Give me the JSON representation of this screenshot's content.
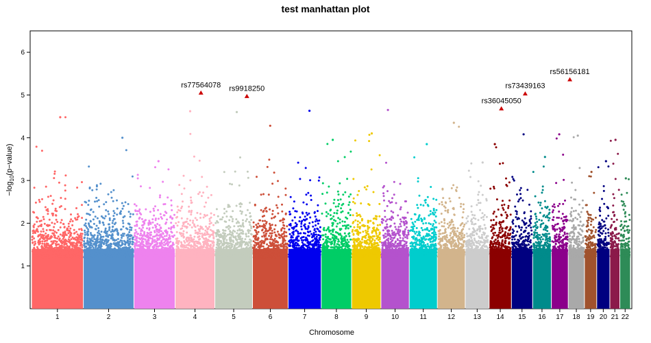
{
  "chart_data": {
    "type": "scatter",
    "title": "test manhattan plot",
    "xlabel": "Chromosome",
    "ylabel": "−log10(p−value)",
    "ylim": [
      0,
      6.5
    ],
    "yticks": [
      1,
      2,
      3,
      4,
      5,
      6
    ],
    "grid": false,
    "legend": "none",
    "chromosomes": [
      {
        "name": "1",
        "rel_len": 249,
        "color": "#FF6666",
        "peak": 4.48
      },
      {
        "name": "2",
        "rel_len": 243,
        "color": "#5490CC",
        "peak": 4.0
      },
      {
        "name": "3",
        "rel_len": 198,
        "color": "#EE82EE",
        "peak": 3.45
      },
      {
        "name": "4",
        "rel_len": 191,
        "color": "#FFB3C0",
        "peak": 4.62
      },
      {
        "name": "5",
        "rel_len": 181,
        "color": "#C3CCBD",
        "peak": 4.6
      },
      {
        "name": "6",
        "rel_len": 171,
        "color": "#CD4F39",
        "peak": 4.28
      },
      {
        "name": "7",
        "rel_len": 159,
        "color": "#0000EE",
        "peak": 4.63
      },
      {
        "name": "8",
        "rel_len": 146,
        "color": "#00CD66",
        "peak": 3.95
      },
      {
        "name": "9",
        "rel_len": 141,
        "color": "#EEC900",
        "peak": 4.1
      },
      {
        "name": "10",
        "rel_len": 136,
        "color": "#B452CD",
        "peak": 4.65
      },
      {
        "name": "11",
        "rel_len": 135,
        "color": "#00CDCD",
        "peak": 3.85
      },
      {
        "name": "12",
        "rel_len": 134,
        "color": "#D2B48C",
        "peak": 4.35
      },
      {
        "name": "13",
        "rel_len": 115,
        "color": "#CCCCCC",
        "peak": 3.42
      },
      {
        "name": "14",
        "rel_len": 107,
        "color": "#8B0000",
        "peak": 3.85
      },
      {
        "name": "15",
        "rel_len": 102,
        "color": "#000080",
        "peak": 4.08
      },
      {
        "name": "16",
        "rel_len": 90,
        "color": "#008B8B",
        "peak": 3.55
      },
      {
        "name": "17",
        "rel_len": 81,
        "color": "#8B008B",
        "peak": 4.08
      },
      {
        "name": "18",
        "rel_len": 78,
        "color": "#A9A9A9",
        "peak": 4.05
      },
      {
        "name": "19",
        "rel_len": 59,
        "color": "#A0522D",
        "peak": 3.2
      },
      {
        "name": "20",
        "rel_len": 63,
        "color": "#000080",
        "peak": 3.45
      },
      {
        "name": "21",
        "rel_len": 48,
        "color": "#8B1A4A",
        "peak": 3.95
      },
      {
        "name": "22",
        "rel_len": 51,
        "color": "#2E8B57",
        "peak": 3.05
      }
    ],
    "highlighted_snps": [
      {
        "label": "rs77564078",
        "chr": "4",
        "pos_frac": 0.65,
        "y": 5.05,
        "color": "#CC0000"
      },
      {
        "label": "rs9918250",
        "chr": "5",
        "pos_frac": 0.85,
        "y": 4.97,
        "color": "#CC0000"
      },
      {
        "label": "rs36045050",
        "chr": "14",
        "pos_frac": 0.55,
        "y": 4.68,
        "color": "#CC0000"
      },
      {
        "label": "rs73439163",
        "chr": "15",
        "pos_frac": 0.65,
        "y": 5.03,
        "color": "#CC0000"
      },
      {
        "label": "rs56156181",
        "chr": "18",
        "pos_frac": 0.1,
        "y": 5.36,
        "color": "#CC0000"
      }
    ]
  }
}
